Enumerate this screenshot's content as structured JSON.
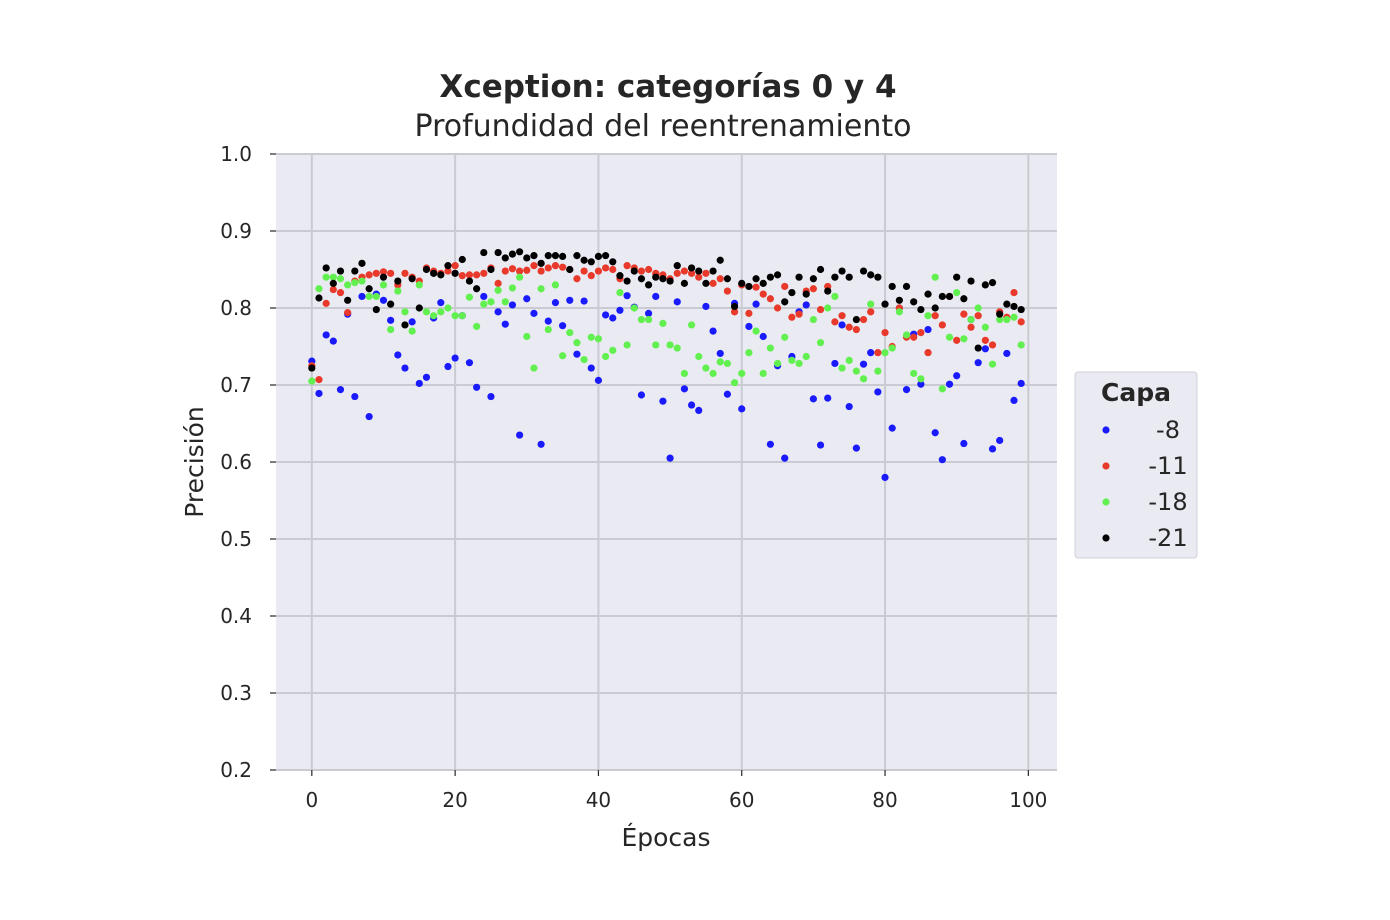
{
  "chart_data": {
    "type": "scatter",
    "title": "Xception: categorías 0 y 4",
    "subtitle": "Profundidad del reentrenamiento",
    "xlabel": "Épocas",
    "ylabel": "Precisión",
    "xlim": [
      -5,
      104
    ],
    "ylim": [
      0.2,
      1.0
    ],
    "xticks": [
      0,
      20,
      40,
      60,
      80,
      100
    ],
    "yticks": [
      0.2,
      0.3,
      0.4,
      0.5,
      0.6,
      0.7,
      0.8,
      0.9,
      1.0
    ],
    "grid": true,
    "legend": {
      "title": "Capa",
      "placement": "right"
    },
    "series": [
      {
        "name": "-8",
        "color": "#1a1aff",
        "values": [
          0.731,
          0.689,
          0.765,
          0.757,
          0.694,
          0.792,
          0.685,
          0.815,
          0.659,
          0.818,
          0.81,
          0.784,
          0.739,
          0.722,
          0.782,
          0.702,
          0.71,
          0.787,
          0.807,
          0.724,
          0.735,
          0.79,
          0.729,
          0.697,
          0.815,
          0.685,
          0.795,
          0.779,
          0.804,
          0.635,
          0.812,
          0.793,
          0.623,
          0.783,
          0.807,
          0.777,
          0.81,
          0.74,
          0.809,
          0.722,
          0.706,
          0.791,
          0.787,
          0.797,
          0.816,
          0.801,
          0.687,
          0.793,
          0.815,
          0.679,
          0.605,
          0.808,
          0.695,
          0.674,
          0.667,
          0.802,
          0.77,
          0.741,
          0.688,
          0.806,
          0.669,
          0.776,
          0.805,
          0.763,
          0.623,
          0.725,
          0.605,
          0.737,
          0.795,
          0.804,
          0.682,
          0.622,
          0.683,
          0.728,
          0.778,
          0.672,
          0.618,
          0.727,
          0.742,
          0.691,
          0.58,
          0.644,
          0.8,
          0.694,
          0.766,
          0.701,
          0.772,
          0.638,
          0.603,
          0.701,
          0.712,
          0.624,
          0.785,
          0.729,
          0.747,
          0.617,
          0.628,
          0.741,
          0.68,
          0.702
        ]
      },
      {
        "name": "-11",
        "color": "#e8392a",
        "values": [
          0.725,
          0.707,
          0.806,
          0.824,
          0.82,
          0.794,
          0.835,
          0.84,
          0.843,
          0.845,
          0.847,
          0.845,
          0.83,
          0.845,
          0.84,
          0.835,
          0.852,
          0.848,
          0.845,
          0.848,
          0.855,
          0.842,
          0.843,
          0.843,
          0.845,
          0.852,
          0.832,
          0.848,
          0.851,
          0.848,
          0.849,
          0.855,
          0.848,
          0.852,
          0.855,
          0.853,
          0.85,
          0.838,
          0.848,
          0.842,
          0.848,
          0.852,
          0.85,
          0.838,
          0.855,
          0.852,
          0.848,
          0.85,
          0.845,
          0.843,
          0.838,
          0.845,
          0.848,
          0.845,
          0.84,
          0.845,
          0.832,
          0.838,
          0.822,
          0.795,
          0.83,
          0.793,
          0.827,
          0.818,
          0.812,
          0.8,
          0.828,
          0.788,
          0.792,
          0.822,
          0.825,
          0.798,
          0.828,
          0.782,
          0.79,
          0.775,
          0.772,
          0.785,
          0.795,
          0.742,
          0.768,
          0.75,
          0.8,
          0.762,
          0.762,
          0.768,
          0.742,
          0.79,
          0.778,
          0.815,
          0.758,
          0.792,
          0.775,
          0.79,
          0.758,
          0.752,
          0.795,
          0.788,
          0.82,
          0.782
        ]
      },
      {
        "name": "-18",
        "color": "#62f050",
        "values": [
          0.705,
          0.825,
          0.84,
          0.84,
          0.838,
          0.83,
          0.833,
          0.835,
          0.815,
          0.815,
          0.83,
          0.772,
          0.822,
          0.795,
          0.77,
          0.83,
          0.795,
          0.79,
          0.795,
          0.8,
          0.79,
          0.79,
          0.814,
          0.776,
          0.805,
          0.808,
          0.823,
          0.808,
          0.826,
          0.84,
          0.763,
          0.722,
          0.825,
          0.772,
          0.83,
          0.738,
          0.768,
          0.755,
          0.733,
          0.762,
          0.76,
          0.737,
          0.745,
          0.82,
          0.752,
          0.8,
          0.785,
          0.785,
          0.752,
          0.78,
          0.752,
          0.748,
          0.715,
          0.778,
          0.737,
          0.722,
          0.715,
          0.73,
          0.728,
          0.703,
          0.715,
          0.742,
          0.77,
          0.715,
          0.748,
          0.728,
          0.762,
          0.732,
          0.728,
          0.737,
          0.785,
          0.755,
          0.8,
          0.815,
          0.722,
          0.732,
          0.718,
          0.708,
          0.805,
          0.718,
          0.742,
          0.748,
          0.795,
          0.765,
          0.715,
          0.708,
          0.79,
          0.84,
          0.695,
          0.762,
          0.82,
          0.76,
          0.785,
          0.8,
          0.775,
          0.727,
          0.785,
          0.785,
          0.788,
          0.752
        ]
      },
      {
        "name": "-21",
        "color": "#000000",
        "values": [
          0.722,
          0.813,
          0.852,
          0.832,
          0.848,
          0.81,
          0.848,
          0.858,
          0.825,
          0.798,
          0.84,
          0.805,
          0.835,
          0.778,
          0.838,
          0.8,
          0.85,
          0.845,
          0.843,
          0.855,
          0.845,
          0.863,
          0.835,
          0.825,
          0.872,
          0.85,
          0.872,
          0.865,
          0.87,
          0.873,
          0.865,
          0.868,
          0.858,
          0.868,
          0.868,
          0.867,
          0.85,
          0.868,
          0.862,
          0.86,
          0.867,
          0.868,
          0.86,
          0.842,
          0.835,
          0.848,
          0.838,
          0.83,
          0.84,
          0.838,
          0.835,
          0.855,
          0.832,
          0.852,
          0.848,
          0.832,
          0.848,
          0.862,
          0.838,
          0.802,
          0.832,
          0.828,
          0.838,
          0.832,
          0.84,
          0.843,
          0.808,
          0.82,
          0.84,
          0.818,
          0.838,
          0.85,
          0.822,
          0.84,
          0.848,
          0.84,
          0.785,
          0.848,
          0.843,
          0.84,
          0.805,
          0.828,
          0.81,
          0.828,
          0.808,
          0.798,
          0.818,
          0.8,
          0.815,
          0.815,
          0.84,
          0.812,
          0.835,
          0.748,
          0.83,
          0.833,
          0.792,
          0.805,
          0.802,
          0.798
        ]
      }
    ]
  }
}
